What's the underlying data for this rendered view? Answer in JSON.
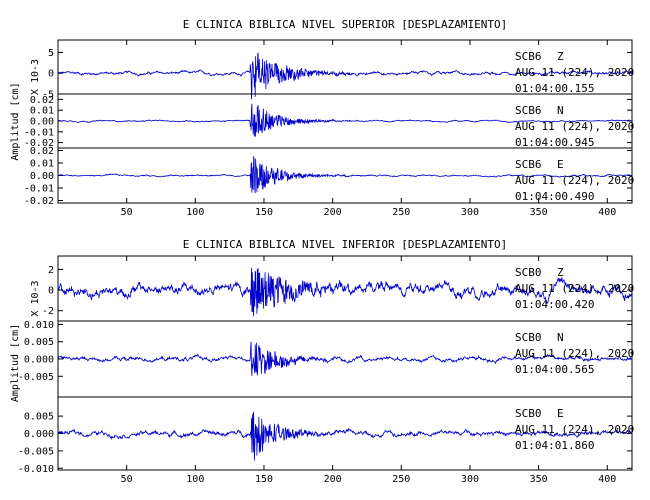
{
  "chart_data": [
    {
      "type": "line",
      "title": "E CLINICA BIBLICA NIVEL SUPERIOR [DESPLAZAMIENTO]",
      "ylabel": "Amplitud [cm]",
      "xlim": [
        0,
        418
      ],
      "xticks": [
        50,
        100,
        150,
        200,
        250,
        300,
        350,
        400
      ],
      "event_onset": 140,
      "traces": [
        {
          "station": "SCB6",
          "component": "Z",
          "date": "AUG 11 (224), 2020",
          "time": "01:04:00.155",
          "scale_label": "X 10-3",
          "ylim": [
            -5,
            8
          ],
          "yticks": [
            {
              "v": 5,
              "label": "5"
            },
            {
              "v": 0,
              "label": "0"
            },
            {
              "v": -5,
              "label": "-5"
            }
          ],
          "peak": 7,
          "noise": 0.35,
          "decay": 0.05,
          "clip_label": "5"
        },
        {
          "station": "SCB6",
          "component": "N",
          "date": "AUG 11 (224), 2020",
          "time": "01:04:00.945",
          "scale_label": "",
          "ylim": [
            -0.025,
            0.025
          ],
          "yticks": [
            {
              "v": 0.02,
              "label": "0.02"
            },
            {
              "v": 0.01,
              "label": "0.01"
            },
            {
              "v": 0,
              "label": "0.00"
            },
            {
              "v": -0.01,
              "label": "-0.01"
            },
            {
              "v": -0.02,
              "label": "-0.02"
            }
          ],
          "peak": 0.02,
          "noise": 0.0006,
          "decay": 0.06
        },
        {
          "station": "SCB6",
          "component": "E",
          "date": "AUG 11 (224), 2020",
          "time": "01:04:00.490",
          "scale_label": "",
          "ylim": [
            -0.022,
            0.022
          ],
          "yticks": [
            {
              "v": 0.02,
              "label": "0.02"
            },
            {
              "v": 0.01,
              "label": "0.01"
            },
            {
              "v": 0,
              "label": "0.00"
            },
            {
              "v": -0.01,
              "label": "-0.01"
            },
            {
              "v": -0.02,
              "label": "-0.02"
            }
          ],
          "peak": 0.019,
          "noise": 0.0006,
          "decay": 0.06
        }
      ]
    },
    {
      "type": "line",
      "title": "E CLINICA BIBLICA NIVEL INFERIOR [DESPLAZAMIENTO]",
      "ylabel": "Amplitud [cm]",
      "xlim": [
        0,
        418
      ],
      "xticks": [
        50,
        100,
        150,
        200,
        250,
        300,
        350,
        400
      ],
      "event_onset": 140,
      "traces": [
        {
          "station": "SCB0",
          "component": "Z",
          "date": "AUG 11 (224), 2020",
          "time": "01:04:00.420",
          "scale_label": "X 10-3",
          "ylim": [
            -3,
            3.3
          ],
          "yticks": [
            {
              "v": 2,
              "label": "2"
            },
            {
              "v": 0,
              "label": "0"
            },
            {
              "v": -2,
              "label": "-2"
            }
          ],
          "peak": 3,
          "noise": 0.55,
          "decay": 0.04
        },
        {
          "station": "SCB0",
          "component": "N",
          "date": "AUG 11 (224), 2020",
          "time": "01:04:00.565",
          "scale_label": "",
          "ylim": [
            -0.011,
            0.011
          ],
          "yticks": [
            {
              "v": 0.01,
              "label": "0.010"
            },
            {
              "v": 0.005,
              "label": "0.005"
            },
            {
              "v": 0,
              "label": "0.000"
            },
            {
              "v": -0.005,
              "label": "-0.005"
            }
          ],
          "peak": 0.007,
          "noise": 0.0006,
          "decay": 0.06
        },
        {
          "station": "SCB0",
          "component": "E",
          "date": "AUG 11 (224), 2020",
          "time": "01:04:01.860",
          "scale_label": "",
          "ylim": [
            -0.0105,
            0.0105
          ],
          "yticks": [
            {
              "v": 0.005,
              "label": "0.005"
            },
            {
              "v": 0,
              "label": "0.000"
            },
            {
              "v": -0.005,
              "label": "-0.005"
            },
            {
              "v": -0.01,
              "label": "-0.010"
            }
          ],
          "peak": 0.0085,
          "noise": 0.0007,
          "decay": 0.06
        }
      ]
    }
  ]
}
